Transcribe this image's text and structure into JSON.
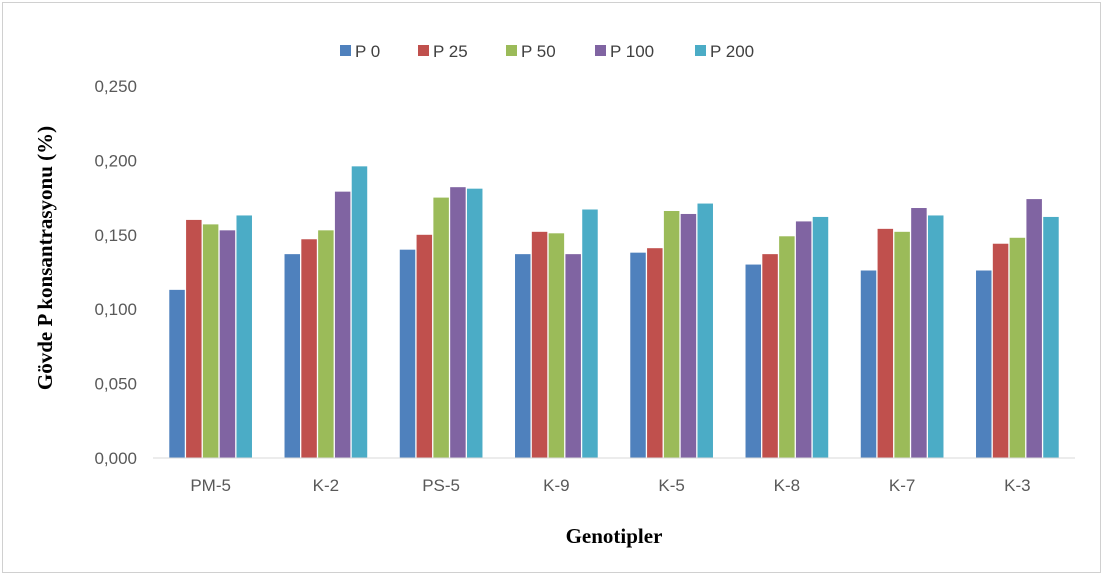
{
  "chart_data": {
    "type": "bar",
    "title": "",
    "xlabel": "Genotipler",
    "ylabel": "Gövde  P konsantrasyonu (%)",
    "ylim": [
      0,
      0.25
    ],
    "yticks": [
      "0,000",
      "0,050",
      "0,100",
      "0,150",
      "0,200",
      "0,250"
    ],
    "ytick_values": [
      0,
      0.05,
      0.1,
      0.15,
      0.2,
      0.25
    ],
    "grid": false,
    "legend_position": "top",
    "categories": [
      "PM-5",
      "K-2",
      "PS-5",
      "K-9",
      "K-5",
      "K-8",
      "K-7",
      "K-3"
    ],
    "series": [
      {
        "name": "P 0",
        "color": "#4f81bd",
        "values": [
          0.113,
          0.137,
          0.14,
          0.137,
          0.138,
          0.13,
          0.126,
          0.126
        ]
      },
      {
        "name": "P 25",
        "color": "#c0504d",
        "values": [
          0.16,
          0.147,
          0.15,
          0.152,
          0.141,
          0.137,
          0.154,
          0.144
        ]
      },
      {
        "name": "P 50",
        "color": "#9bbb59",
        "values": [
          0.157,
          0.153,
          0.175,
          0.151,
          0.166,
          0.149,
          0.152,
          0.148
        ]
      },
      {
        "name": "P 100",
        "color": "#8064a2",
        "values": [
          0.153,
          0.179,
          0.182,
          0.137,
          0.164,
          0.159,
          0.168,
          0.174
        ]
      },
      {
        "name": "P 200",
        "color": "#4bacc6",
        "values": [
          0.163,
          0.196,
          0.181,
          0.167,
          0.171,
          0.162,
          0.163,
          0.162
        ]
      }
    ]
  }
}
